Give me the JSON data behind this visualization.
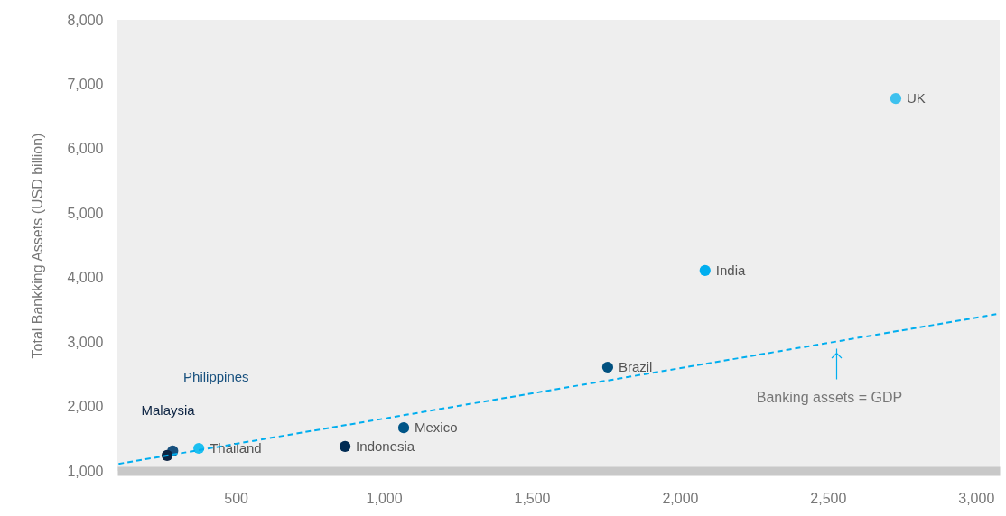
{
  "chart_data": {
    "type": "scatter",
    "ylabel": "Total Bankking Assets (USD billion)",
    "xlim": [
      100,
      3080
    ],
    "ylim": [
      1000,
      8000
    ],
    "xticks": [
      500,
      {
        "value": 1000,
        "label": "1,000"
      },
      {
        "value": 1500,
        "label": "1,500"
      },
      {
        "value": 2000,
        "label": "2,000"
      },
      {
        "value": 2500,
        "label": "2,500"
      },
      {
        "value": 3000,
        "label": "3,000"
      }
    ],
    "yticks": [
      {
        "value": 1000,
        "label": "1,000"
      },
      {
        "value": 2000,
        "label": "2,000"
      },
      {
        "value": 3000,
        "label": "3,000"
      },
      {
        "value": 4000,
        "label": "4,000"
      },
      {
        "value": 5000,
        "label": "5,000"
      },
      {
        "value": 6000,
        "label": "6,000"
      },
      {
        "value": 7000,
        "label": "7,000"
      },
      {
        "value": 8000,
        "label": "8,000"
      }
    ],
    "marker": "circle",
    "series": [
      {
        "name": "UK",
        "color": "#3ec1ee",
        "x": [
          2729
        ],
        "values": [
          6780
        ]
      },
      {
        "name": "India",
        "color": "#00aeef",
        "x": [
          2085
        ],
        "values": [
          4110
        ]
      },
      {
        "name": "Brazil",
        "color": "#00507f",
        "x": [
          1756
        ],
        "values": [
          2610
        ]
      },
      {
        "name": "Mexico",
        "color": "#005587",
        "x": [
          1067
        ],
        "values": [
          1670
        ]
      },
      {
        "name": "Indonesia",
        "color": "#002b53",
        "x": [
          869
        ],
        "values": [
          1380
        ]
      },
      {
        "name": "Thailand",
        "color": "#1cbff0",
        "x": [
          375
        ],
        "values": [
          1350
        ]
      },
      {
        "name": "Philippines",
        "color": "#17507e",
        "x": [
          287
        ],
        "values": [
          1310
        ]
      },
      {
        "name": "Malaysia",
        "color": "#0c2342",
        "x": [
          268
        ],
        "values": [
          1240
        ]
      },
      {
        "type": "line",
        "color": "#00aeef",
        "line_style": "dashed",
        "marker": "none",
        "x": [
          104,
          3080
        ],
        "values": [
          1110,
          3440
        ]
      }
    ],
    "annotations": [
      "Banking assets = GDP"
    ]
  }
}
